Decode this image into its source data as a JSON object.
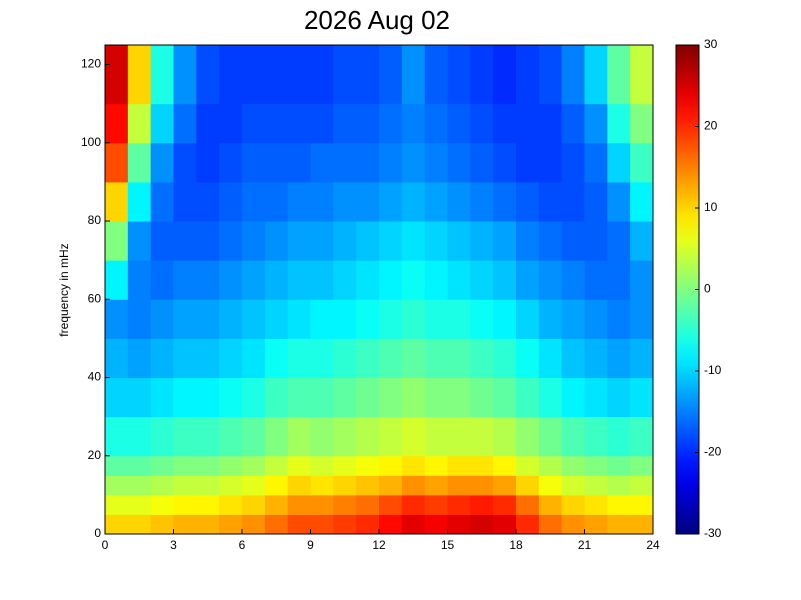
{
  "chart_data": {
    "type": "heatmap",
    "title": "2026 Aug 02",
    "ylabel": "frequency in mHz",
    "xlim": [
      0,
      24
    ],
    "xticks": [
      0,
      3,
      6,
      9,
      12,
      15,
      18,
      21,
      24
    ],
    "ylim": [
      0,
      125
    ],
    "yticks": [
      0,
      20,
      40,
      60,
      80,
      100,
      120
    ],
    "clim": [
      -30,
      30
    ],
    "cticks": [
      -30,
      -20,
      -10,
      0,
      10,
      20,
      30
    ],
    "colormap": "jet",
    "xbins": [
      0,
      1,
      2,
      3,
      4,
      5,
      6,
      7,
      8,
      9,
      10,
      11,
      12,
      13,
      14,
      15,
      16,
      17,
      18,
      19,
      20,
      21,
      22,
      23,
      24
    ],
    "ybins": [
      0,
      5,
      10,
      15,
      20,
      30,
      40,
      50,
      60,
      70,
      80,
      90,
      100,
      110,
      125
    ],
    "values": [
      [
        10,
        10,
        11,
        12,
        12,
        13,
        14,
        16,
        18,
        18,
        19,
        20,
        22,
        24,
        23,
        24,
        25,
        24,
        20,
        16,
        14,
        13,
        12,
        12
      ],
      [
        6,
        6,
        7,
        8,
        8,
        9,
        10,
        12,
        14,
        14,
        15,
        16,
        18,
        20,
        19,
        20,
        21,
        20,
        16,
        12,
        10,
        9,
        8,
        8
      ],
      [
        2,
        2,
        3,
        4,
        4,
        5,
        6,
        8,
        10,
        9,
        10,
        11,
        12,
        14,
        13,
        14,
        14,
        13,
        10,
        7,
        5,
        4,
        3,
        4
      ],
      [
        -2,
        -2,
        -1,
        0,
        0,
        1,
        2,
        4,
        6,
        5,
        6,
        7,
        8,
        9,
        8,
        9,
        9,
        8,
        5,
        3,
        1,
        0,
        -1,
        0
      ],
      [
        -6,
        -6,
        -5,
        -4,
        -4,
        -3,
        -2,
        0,
        2,
        1,
        2,
        3,
        4,
        5,
        4,
        4,
        4,
        3,
        1,
        -1,
        -3,
        -4,
        -5,
        -4
      ],
      [
        -10,
        -10,
        -9,
        -8,
        -8,
        -7,
        -6,
        -4,
        -3,
        -3,
        -2,
        -1,
        0,
        1,
        0,
        0,
        -1,
        -2,
        -4,
        -6,
        -8,
        -9,
        -10,
        -9
      ],
      [
        -12,
        -13,
        -12,
        -11,
        -11,
        -10,
        -9,
        -7,
        -6,
        -6,
        -5,
        -4,
        -3,
        -2,
        -3,
        -3,
        -4,
        -5,
        -7,
        -9,
        -11,
        -12,
        -13,
        -12
      ],
      [
        -14,
        -15,
        -14,
        -13,
        -13,
        -12,
        -11,
        -10,
        -9,
        -8,
        -8,
        -7,
        -6,
        -5,
        -6,
        -6,
        -7,
        -8,
        -10,
        -12,
        -13,
        -14,
        -15,
        -14
      ],
      [
        -8,
        -15,
        -16,
        -15,
        -15,
        -14,
        -13,
        -12,
        -11,
        -11,
        -10,
        -9,
        -8,
        -7,
        -8,
        -9,
        -10,
        -11,
        -13,
        -14,
        -15,
        -16,
        -16,
        -14
      ],
      [
        0,
        -14,
        -17,
        -17,
        -17,
        -16,
        -15,
        -14,
        -13,
        -13,
        -12,
        -11,
        -10,
        -9,
        -10,
        -11,
        -12,
        -13,
        -15,
        -16,
        -17,
        -17,
        -16,
        -12
      ],
      [
        10,
        -8,
        -16,
        -18,
        -18,
        -17,
        -16,
        -16,
        -15,
        -15,
        -14,
        -14,
        -13,
        -12,
        -13,
        -14,
        -15,
        -16,
        -17,
        -18,
        -18,
        -17,
        -14,
        -8
      ],
      [
        18,
        -2,
        -14,
        -18,
        -19,
        -18,
        -17,
        -17,
        -17,
        -16,
        -16,
        -16,
        -15,
        -14,
        -15,
        -16,
        -17,
        -18,
        -19,
        -19,
        -18,
        -16,
        -10,
        -4
      ],
      [
        22,
        4,
        -10,
        -16,
        -19,
        -19,
        -18,
        -18,
        -18,
        -18,
        -17,
        -17,
        -16,
        -15,
        -16,
        -17,
        -18,
        -19,
        -19,
        -19,
        -17,
        -14,
        -6,
        0
      ],
      [
        25,
        10,
        -6,
        -14,
        -18,
        -19,
        -19,
        -19,
        -19,
        -19,
        -18,
        -18,
        -17,
        -14,
        -17,
        -18,
        -19,
        -20,
        -19,
        -18,
        -15,
        -10,
        -2,
        4
      ]
    ]
  }
}
